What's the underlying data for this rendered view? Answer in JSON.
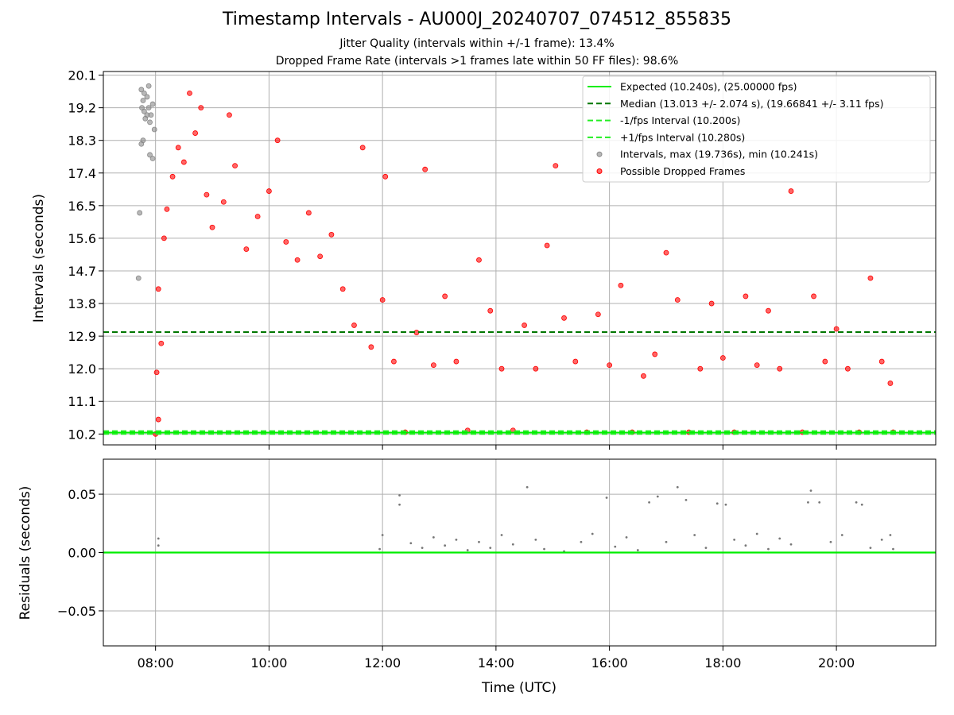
{
  "title": "Timestamp Intervals - AU000J_20240707_074512_855835",
  "subtitle_1": "Jitter Quality (intervals within +/-1 frame): 13.4%",
  "subtitle_2": "Dropped Frame Rate (intervals >1 frames late within 50 FF files): 98.6%",
  "colors": {
    "expected": "#00ee00",
    "median": "#007700",
    "fps_interval": "#22ee22",
    "normal_points": "#888888",
    "dropped_points": "#ff0000",
    "residual_points": "#777777",
    "grid": "#b0b0b0"
  },
  "chart_data": [
    {
      "type": "scatter",
      "ylabel": "Intervals (seconds)",
      "xlabel": "",
      "x_unit": "hours UTC",
      "xlim": [
        7.08,
        21.75
      ],
      "ylim": [
        9.9,
        20.2
      ],
      "y_ticks": [
        "10.2",
        "11.1",
        "12.0",
        "12.9",
        "13.8",
        "14.7",
        "15.6",
        "16.5",
        "17.4",
        "18.3",
        "19.2",
        "20.1"
      ],
      "y_tick_values": [
        10.2,
        11.1,
        12.0,
        12.9,
        13.8,
        14.7,
        15.6,
        16.5,
        17.4,
        18.3,
        19.2,
        20.1
      ],
      "grid": true,
      "legend_position": "top-right",
      "lines": [
        {
          "name": "Expected (10.240s), (25.00000 fps)",
          "y": 10.24,
          "style": "solid",
          "color": "#00ee00"
        },
        {
          "name": "Median (13.013 +/- 2.074 s), (19.66841 +/- 3.11 fps)",
          "y": 13.013,
          "style": "dashed",
          "color": "#007700"
        },
        {
          "name": "-1/fps Interval (10.200s)",
          "y": 10.2,
          "style": "dashed",
          "color": "#22ee22"
        },
        {
          "name": "+1/fps Interval (10.280s)",
          "y": 10.28,
          "style": "dashed",
          "color": "#22ee22"
        }
      ],
      "series": [
        {
          "name": "Intervals, max (19.736s), min (10.241s)",
          "color": "#888888",
          "points": [
            [
              7.75,
              19.7
            ],
            [
              7.78,
              19.4
            ],
            [
              7.8,
              19.1
            ],
            [
              7.82,
              18.9
            ],
            [
              7.85,
              19.5
            ],
            [
              7.88,
              19.2
            ],
            [
              7.9,
              18.8
            ],
            [
              7.75,
              18.2
            ],
            [
              7.78,
              18.3
            ],
            [
              7.92,
              19.0
            ],
            [
              7.95,
              19.3
            ],
            [
              7.98,
              18.6
            ],
            [
              7.72,
              16.3
            ],
            [
              7.7,
              14.5
            ],
            [
              7.8,
              19.6
            ],
            [
              7.85,
              19.0
            ],
            [
              7.9,
              17.9
            ],
            [
              7.95,
              17.8
            ],
            [
              7.88,
              19.8
            ],
            [
              7.76,
              19.2
            ]
          ]
        },
        {
          "name": "Possible Dropped Frames",
          "color": "#ff0000",
          "summary": "dense cloud of points: 08:00-11:30 mostly 14-18 s; 11:30-21:00 mostly 11-15 s with a dense band near 12 s and many points at 10.2 s",
          "points": [
            [
              8.0,
              10.2
            ],
            [
              8.05,
              10.6
            ],
            [
              8.02,
              11.9
            ],
            [
              8.1,
              12.7
            ],
            [
              8.05,
              14.2
            ],
            [
              8.15,
              15.6
            ],
            [
              8.2,
              16.4
            ],
            [
              8.3,
              17.3
            ],
            [
              8.4,
              18.1
            ],
            [
              8.5,
              17.7
            ],
            [
              8.6,
              19.6
            ],
            [
              8.7,
              18.5
            ],
            [
              8.8,
              19.2
            ],
            [
              8.9,
              16.8
            ],
            [
              9.0,
              15.9
            ],
            [
              9.2,
              16.6
            ],
            [
              9.3,
              19.0
            ],
            [
              9.4,
              17.6
            ],
            [
              9.6,
              15.3
            ],
            [
              9.8,
              16.2
            ],
            [
              10.0,
              16.9
            ],
            [
              10.15,
              18.3
            ],
            [
              10.3,
              15.5
            ],
            [
              10.5,
              15.0
            ],
            [
              10.7,
              16.3
            ],
            [
              10.9,
              15.1
            ],
            [
              11.1,
              15.7
            ],
            [
              11.3,
              14.2
            ],
            [
              11.5,
              13.2
            ],
            [
              11.65,
              18.1
            ],
            [
              11.8,
              12.6
            ],
            [
              12.0,
              13.9
            ],
            [
              12.05,
              17.3
            ],
            [
              12.2,
              12.2
            ],
            [
              12.4,
              10.25
            ],
            [
              12.6,
              13.0
            ],
            [
              12.75,
              17.5
            ],
            [
              12.9,
              12.1
            ],
            [
              13.1,
              14.0
            ],
            [
              13.3,
              12.2
            ],
            [
              13.5,
              10.3
            ],
            [
              13.7,
              15.0
            ],
            [
              13.9,
              13.6
            ],
            [
              14.1,
              12.0
            ],
            [
              14.3,
              10.3
            ],
            [
              14.5,
              13.2
            ],
            [
              14.7,
              12.0
            ],
            [
              14.9,
              15.4
            ],
            [
              15.05,
              17.6
            ],
            [
              15.2,
              13.4
            ],
            [
              15.4,
              12.2
            ],
            [
              15.6,
              10.25
            ],
            [
              15.8,
              13.5
            ],
            [
              16.0,
              12.1
            ],
            [
              16.2,
              14.3
            ],
            [
              16.4,
              10.25
            ],
            [
              16.6,
              11.8
            ],
            [
              16.8,
              12.4
            ],
            [
              17.0,
              15.2
            ],
            [
              17.2,
              13.9
            ],
            [
              17.4,
              10.25
            ],
            [
              17.6,
              12.0
            ],
            [
              17.8,
              13.8
            ],
            [
              18.0,
              12.3
            ],
            [
              18.2,
              10.25
            ],
            [
              18.4,
              14.0
            ],
            [
              18.6,
              12.1
            ],
            [
              18.8,
              13.6
            ],
            [
              19.0,
              12.0
            ],
            [
              19.2,
              16.9
            ],
            [
              19.4,
              10.25
            ],
            [
              19.6,
              14.0
            ],
            [
              19.8,
              12.2
            ],
            [
              20.0,
              13.1
            ],
            [
              20.2,
              12.0
            ],
            [
              20.4,
              10.25
            ],
            [
              20.6,
              14.5
            ],
            [
              20.8,
              12.2
            ],
            [
              20.95,
              11.6
            ],
            [
              21.0,
              10.25
            ]
          ]
        }
      ]
    },
    {
      "type": "scatter",
      "ylabel": "Residuals (seconds)",
      "xlabel": "Time (UTC)",
      "x_unit": "hours UTC",
      "xlim": [
        7.08,
        21.75
      ],
      "ylim": [
        -0.08,
        0.08
      ],
      "x_ticks": [
        "08:00",
        "10:00",
        "12:00",
        "14:00",
        "16:00",
        "18:00",
        "20:00"
      ],
      "x_tick_values": [
        8,
        10,
        12,
        14,
        16,
        18,
        20
      ],
      "y_ticks": [
        "0.05",
        "0.00",
        "−0.05"
      ],
      "y_tick_values": [
        0.05,
        0.0,
        -0.05
      ],
      "grid": true,
      "lines": [
        {
          "y": 0.0,
          "style": "solid",
          "color": "#00ee00"
        }
      ],
      "series": [
        {
          "color": "#777777",
          "summary": "small residual dots mostly between 0 and 0.02 s from 12:00 to 21:00, a few near 0.04-0.057 s",
          "points": [
            [
              8.05,
              0.012
            ],
            [
              8.05,
              0.006
            ],
            [
              11.95,
              0.003
            ],
            [
              12.0,
              0.015
            ],
            [
              12.3,
              0.049
            ],
            [
              12.3,
              0.041
            ],
            [
              12.5,
              0.008
            ],
            [
              12.7,
              0.004
            ],
            [
              12.9,
              0.013
            ],
            [
              13.1,
              0.006
            ],
            [
              13.3,
              0.011
            ],
            [
              13.5,
              0.002
            ],
            [
              13.7,
              0.009
            ],
            [
              13.9,
              0.004
            ],
            [
              14.1,
              0.015
            ],
            [
              14.3,
              0.007
            ],
            [
              14.55,
              0.056
            ],
            [
              14.7,
              0.011
            ],
            [
              14.85,
              0.003
            ],
            [
              15.2,
              0.001
            ],
            [
              15.5,
              0.009
            ],
            [
              15.7,
              0.016
            ],
            [
              15.95,
              0.047
            ],
            [
              16.1,
              0.005
            ],
            [
              16.3,
              0.013
            ],
            [
              16.5,
              0.002
            ],
            [
              16.7,
              0.043
            ],
            [
              16.85,
              0.048
            ],
            [
              17.0,
              0.009
            ],
            [
              17.2,
              0.056
            ],
            [
              17.35,
              0.045
            ],
            [
              17.5,
              0.015
            ],
            [
              17.7,
              0.004
            ],
            [
              17.9,
              0.042
            ],
            [
              18.05,
              0.041
            ],
            [
              18.2,
              0.011
            ],
            [
              18.4,
              0.006
            ],
            [
              18.6,
              0.016
            ],
            [
              18.8,
              0.003
            ],
            [
              19.0,
              0.012
            ],
            [
              19.2,
              0.007
            ],
            [
              19.5,
              0.043
            ],
            [
              19.55,
              0.053
            ],
            [
              19.7,
              0.043
            ],
            [
              19.9,
              0.009
            ],
            [
              20.1,
              0.015
            ],
            [
              20.35,
              0.043
            ],
            [
              20.45,
              0.041
            ],
            [
              20.6,
              0.004
            ],
            [
              20.8,
              0.011
            ],
            [
              20.95,
              0.015
            ],
            [
              21.0,
              0.003
            ]
          ]
        }
      ]
    }
  ]
}
